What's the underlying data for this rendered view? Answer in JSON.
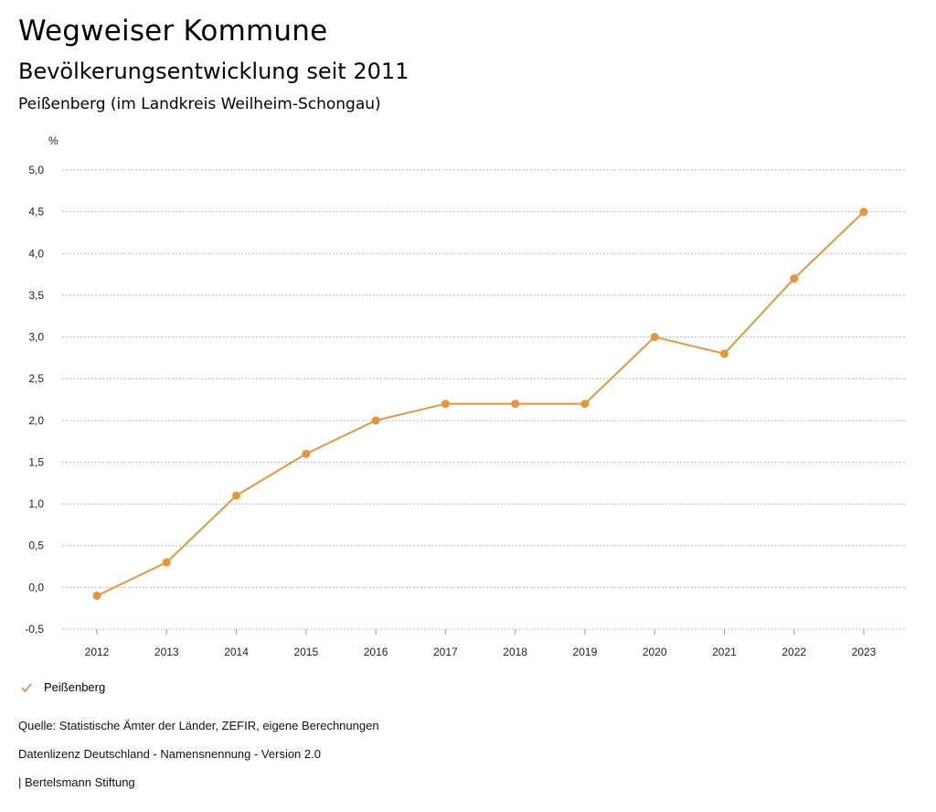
{
  "header": {
    "title": "Wegweiser Kommune",
    "subtitle": "Bevölkerungsentwicklung seit 2011",
    "region": "Peißenberg (im Landkreis Weilheim-Schongau)"
  },
  "chart_data": {
    "type": "line",
    "ylabel": "%",
    "ylim": [
      -0.5,
      5.0
    ],
    "yticks": [
      -0.5,
      0.0,
      0.5,
      1.0,
      1.5,
      2.0,
      2.5,
      3.0,
      3.5,
      4.0,
      4.5,
      5.0
    ],
    "ytick_labels": [
      "-0,5",
      "0,0",
      "0,5",
      "1,0",
      "1,5",
      "2,0",
      "2,5",
      "3,0",
      "3,5",
      "4,0",
      "4,5",
      "5,0"
    ],
    "categories": [
      "2012",
      "2013",
      "2014",
      "2015",
      "2016",
      "2017",
      "2018",
      "2019",
      "2020",
      "2021",
      "2022",
      "2023"
    ],
    "series": [
      {
        "name": "Peißenberg",
        "color": "#e8953a",
        "values": [
          -0.1,
          0.3,
          1.1,
          1.6,
          2.0,
          2.2,
          2.2,
          2.2,
          3.0,
          2.8,
          3.7,
          4.5
        ]
      }
    ],
    "grid": true,
    "legend_position": "bottom-left"
  },
  "legend": {
    "label": "Peißenberg",
    "icon": "check-icon"
  },
  "footer": {
    "source": "Quelle: Statistische Ämter der Länder, ZEFIR, eigene Berechnungen",
    "license": "Datenlizenz Deutschland - Namensnennung - Version 2.0",
    "publisher": "| Bertelsmann Stiftung"
  }
}
